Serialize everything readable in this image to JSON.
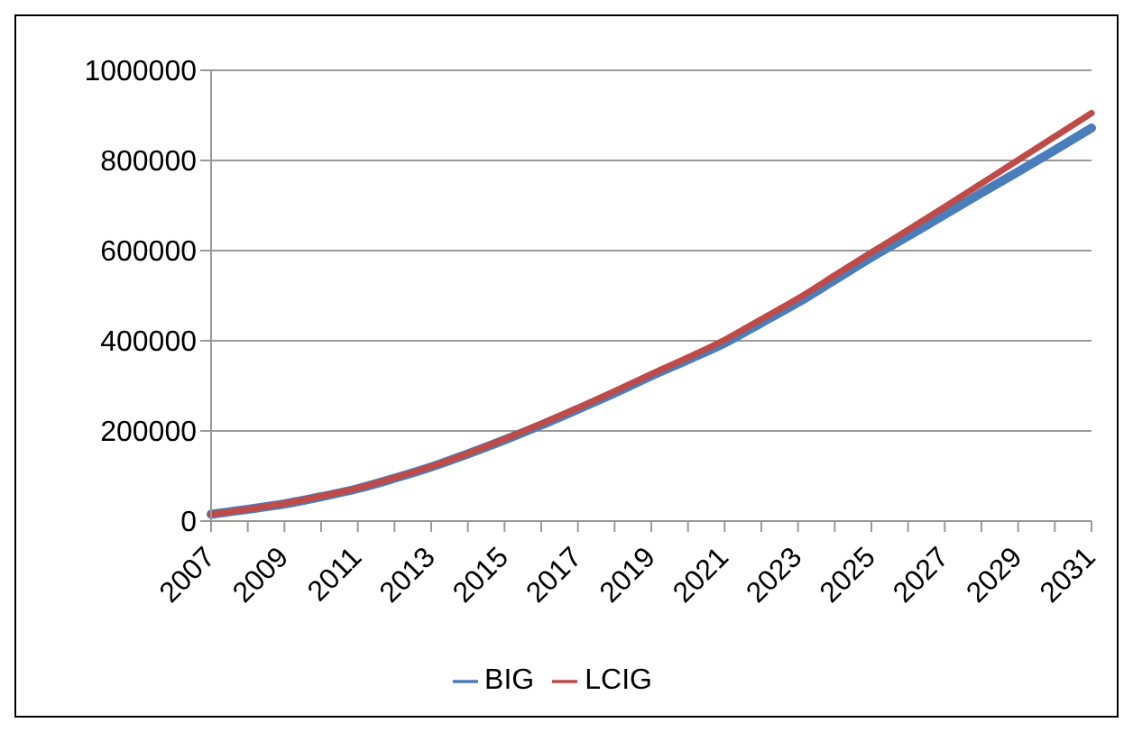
{
  "chart_data": {
    "type": "line",
    "categories": [
      "2007",
      null,
      "2009",
      null,
      "2011",
      null,
      "2013",
      null,
      "2015",
      null,
      "2017",
      null,
      "2019",
      null,
      "2021",
      null,
      "2023",
      null,
      "2025",
      null,
      "2027",
      null,
      "2029",
      null,
      "2031"
    ],
    "series": [
      {
        "name": "BIG",
        "color": "#4a7ebb",
        "values": [
          15000,
          26000,
          38000,
          54000,
          72000,
          95000,
          120000,
          149000,
          180000,
          213000,
          248000,
          284000,
          322000,
          358000,
          395000,
          440000,
          485000,
          535000,
          585000,
          632000,
          680000,
          728000,
          775000,
          823000,
          872000
        ]
      },
      {
        "name": "LCIG",
        "color": "#be4b48",
        "values": [
          15000,
          26000,
          39000,
          55000,
          73000,
          96000,
          121000,
          150000,
          182000,
          216000,
          251000,
          288000,
          326000,
          363000,
          402000,
          448000,
          494000,
          545000,
          596000,
          646000,
          697000,
          749000,
          801000,
          853000,
          905000
        ]
      }
    ],
    "ylim": [
      0,
      1000000
    ],
    "yticks": [
      0,
      200000,
      400000,
      600000,
      800000,
      1000000
    ],
    "grid": "y",
    "legend": "bottom",
    "marker": "none",
    "line_style": "solid"
  }
}
